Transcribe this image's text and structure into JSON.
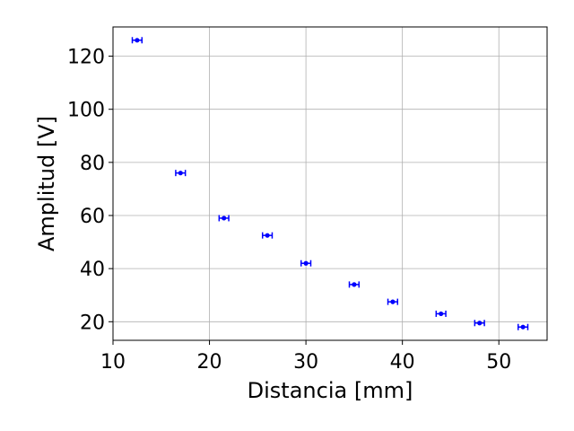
{
  "chart_data": {
    "type": "scatter",
    "xlabel": "Distancia [mm]",
    "ylabel": "Amplitud [V]",
    "xlim": [
      10,
      55
    ],
    "ylim": [
      13,
      131
    ],
    "xticks": [
      10,
      20,
      30,
      40,
      50
    ],
    "yticks": [
      20,
      40,
      60,
      80,
      100,
      120
    ],
    "xtick_labels": [
      "10",
      "20",
      "30",
      "40",
      "50"
    ],
    "ytick_labels": [
      "20",
      "40",
      "60",
      "80",
      "100",
      "120"
    ],
    "grid": true,
    "marker_color": "#0000ff",
    "series": [
      {
        "points": [
          {
            "x": 12.5,
            "y": 126.0,
            "xerr": 0.5
          },
          {
            "x": 17.0,
            "y": 76.0,
            "xerr": 0.5
          },
          {
            "x": 21.5,
            "y": 59.0,
            "xerr": 0.5
          },
          {
            "x": 26.0,
            "y": 52.5,
            "xerr": 0.5
          },
          {
            "x": 30.0,
            "y": 42.0,
            "xerr": 0.5
          },
          {
            "x": 35.0,
            "y": 34.0,
            "xerr": 0.5
          },
          {
            "x": 39.0,
            "y": 27.5,
            "xerr": 0.5
          },
          {
            "x": 44.0,
            "y": 23.0,
            "xerr": 0.5
          },
          {
            "x": 48.0,
            "y": 19.5,
            "xerr": 0.5
          },
          {
            "x": 52.5,
            "y": 18.0,
            "xerr": 0.5
          }
        ]
      }
    ]
  }
}
